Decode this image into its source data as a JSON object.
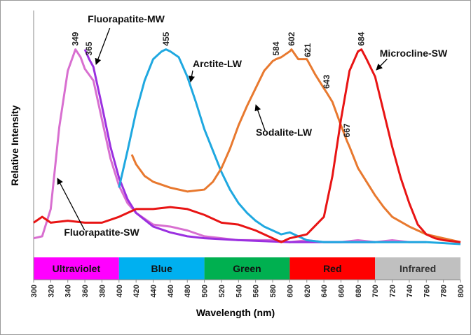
{
  "chart_data": {
    "type": "line",
    "x_label": "Wavelength (nm)",
    "y_label": "Relative Intensity",
    "xlim": [
      300,
      800
    ],
    "ylim": [
      0,
      1.2
    ],
    "xticks": [
      300,
      320,
      340,
      360,
      380,
      400,
      420,
      440,
      460,
      480,
      500,
      520,
      540,
      560,
      580,
      600,
      620,
      640,
      660,
      680,
      700,
      720,
      740,
      760,
      780,
      800
    ],
    "bands": [
      {
        "label": "Ultraviolet",
        "start": 300,
        "end": 400,
        "color": "#ff00ff"
      },
      {
        "label": "Blue",
        "start": 400,
        "end": 500,
        "color": "#00b0f0"
      },
      {
        "label": "Green",
        "start": 500,
        "end": 600,
        "color": "#00b050"
      },
      {
        "label": "Red",
        "start": 600,
        "end": 700,
        "color": "#ff0000"
      },
      {
        "label": "Infrared",
        "start": 700,
        "end": 800,
        "color": "#c0c0c0"
      }
    ],
    "series": [
      {
        "name": "Fluorapatite-SW",
        "color": "#d86fd0",
        "x": [
          300,
          310,
          320,
          330,
          340,
          349,
          355,
          360,
          370,
          380,
          390,
          400,
          410,
          420,
          440,
          460,
          480,
          500,
          520,
          540,
          560,
          580,
          600,
          620,
          640,
          660,
          680,
          700,
          720,
          740,
          760
        ],
        "values": [
          0.03,
          0.04,
          0.18,
          0.6,
          0.89,
          1.0,
          0.96,
          0.9,
          0.84,
          0.64,
          0.44,
          0.3,
          0.21,
          0.16,
          0.1,
          0.09,
          0.07,
          0.04,
          0.03,
          0.02,
          0.02,
          0.02,
          0.01,
          0.02,
          0.01,
          0.01,
          0.02,
          0.01,
          0.02,
          0.01,
          0.01
        ],
        "marked": [
          349
        ]
      },
      {
        "name": "Fluorapatite-MW",
        "color": "#9b30e0",
        "x": [
          360,
          365,
          370,
          380,
          390,
          400,
          410,
          420,
          440,
          460,
          480,
          500,
          540,
          600,
          650,
          700
        ],
        "values": [
          1.0,
          0.95,
          0.91,
          0.71,
          0.5,
          0.34,
          0.23,
          0.16,
          0.09,
          0.06,
          0.04,
          0.03,
          0.02,
          0.01,
          0.01,
          0.01
        ],
        "marked": [
          365
        ]
      },
      {
        "name": "Arctite-LW",
        "color": "#1fa8e0",
        "x": [
          400,
          410,
          420,
          430,
          440,
          450,
          455,
          460,
          470,
          480,
          490,
          500,
          510,
          520,
          530,
          540,
          550,
          560,
          570,
          580,
          590,
          600,
          610,
          620,
          640,
          680,
          720,
          760,
          800
        ],
        "values": [
          0.29,
          0.48,
          0.68,
          0.84,
          0.95,
          0.99,
          1.0,
          0.99,
          0.96,
          0.86,
          0.73,
          0.59,
          0.48,
          0.37,
          0.28,
          0.21,
          0.16,
          0.12,
          0.09,
          0.07,
          0.05,
          0.06,
          0.04,
          0.02,
          0.01,
          0.01,
          0.01,
          0.01,
          0.0
        ],
        "marked": [
          455
        ]
      },
      {
        "name": "Sodalite-LW",
        "color": "#e8792f",
        "x": [
          415,
          420,
          430,
          440,
          460,
          480,
          500,
          510,
          520,
          530,
          540,
          550,
          560,
          570,
          580,
          584,
          590,
          600,
          602,
          610,
          620,
          630,
          640,
          643,
          650,
          660,
          667,
          670,
          680,
          690,
          700,
          710,
          720,
          740,
          760,
          780,
          800
        ],
        "values": [
          0.46,
          0.41,
          0.35,
          0.32,
          0.29,
          0.27,
          0.28,
          0.32,
          0.39,
          0.49,
          0.61,
          0.71,
          0.8,
          0.89,
          0.94,
          0.95,
          0.96,
          0.99,
          1.0,
          0.95,
          0.95,
          0.87,
          0.8,
          0.78,
          0.73,
          0.61,
          0.53,
          0.5,
          0.39,
          0.32,
          0.25,
          0.19,
          0.14,
          0.09,
          0.05,
          0.03,
          0.01
        ],
        "marked": [
          584,
          602,
          621,
          643,
          667
        ]
      },
      {
        "name": "Microcline-SW",
        "color": "#e81414",
        "x": [
          300,
          310,
          320,
          340,
          360,
          380,
          400,
          420,
          440,
          460,
          480,
          500,
          520,
          540,
          560,
          580,
          590,
          600,
          620,
          640,
          650,
          660,
          670,
          680,
          684,
          690,
          700,
          710,
          720,
          730,
          740,
          750,
          760,
          770,
          780,
          800
        ],
        "values": [
          0.11,
          0.14,
          0.11,
          0.12,
          0.11,
          0.11,
          0.14,
          0.18,
          0.18,
          0.19,
          0.18,
          0.15,
          0.11,
          0.1,
          0.07,
          0.03,
          0.01,
          0.03,
          0.05,
          0.14,
          0.35,
          0.64,
          0.89,
          0.99,
          1.0,
          0.95,
          0.86,
          0.68,
          0.5,
          0.34,
          0.21,
          0.1,
          0.05,
          0.03,
          0.02,
          0.01
        ],
        "marked": [
          684
        ]
      }
    ]
  }
}
